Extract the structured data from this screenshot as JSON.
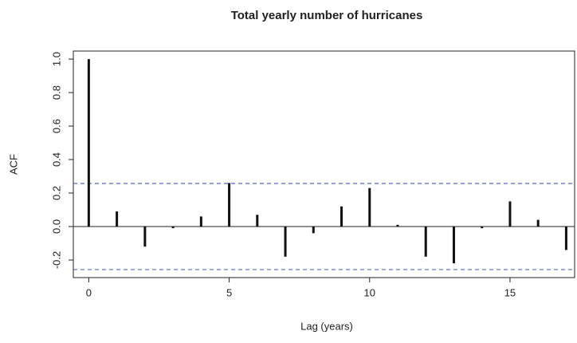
{
  "chart_data": {
    "type": "acf",
    "title": "Total yearly number of hurricanes",
    "x_label": "Lag (years)",
    "y_label": "ACF",
    "x": [
      0,
      1,
      2,
      3,
      4,
      5,
      6,
      7,
      8,
      9,
      10,
      11,
      12,
      13,
      14,
      15,
      16,
      17
    ],
    "values": [
      1.0,
      0.09,
      -0.12,
      -0.01,
      0.06,
      0.26,
      0.07,
      -0.18,
      -0.04,
      0.12,
      0.23,
      0.01,
      -0.18,
      -0.22,
      -0.01,
      0.15,
      0.04,
      -0.14
    ],
    "color": "#111111",
    "confidence_bound": 0.257,
    "confidence_color": "#5566bb",
    "xlim": [
      -0.55,
      17.3
    ],
    "ylim": [
      -0.305,
      1.048
    ],
    "xticks": [
      0,
      5,
      10,
      15
    ],
    "yticks": [
      {
        "value": -0.2,
        "label": "-0.2"
      },
      {
        "value": 0,
        "label": "0.0"
      },
      {
        "value": 0.2,
        "label": "0.2"
      },
      {
        "value": 0.4,
        "label": "0.4"
      },
      {
        "value": 0.6,
        "label": "0.6"
      },
      {
        "value": 0.8,
        "label": "0.8"
      },
      {
        "value": 1.0,
        "label": "1.0"
      }
    ]
  }
}
